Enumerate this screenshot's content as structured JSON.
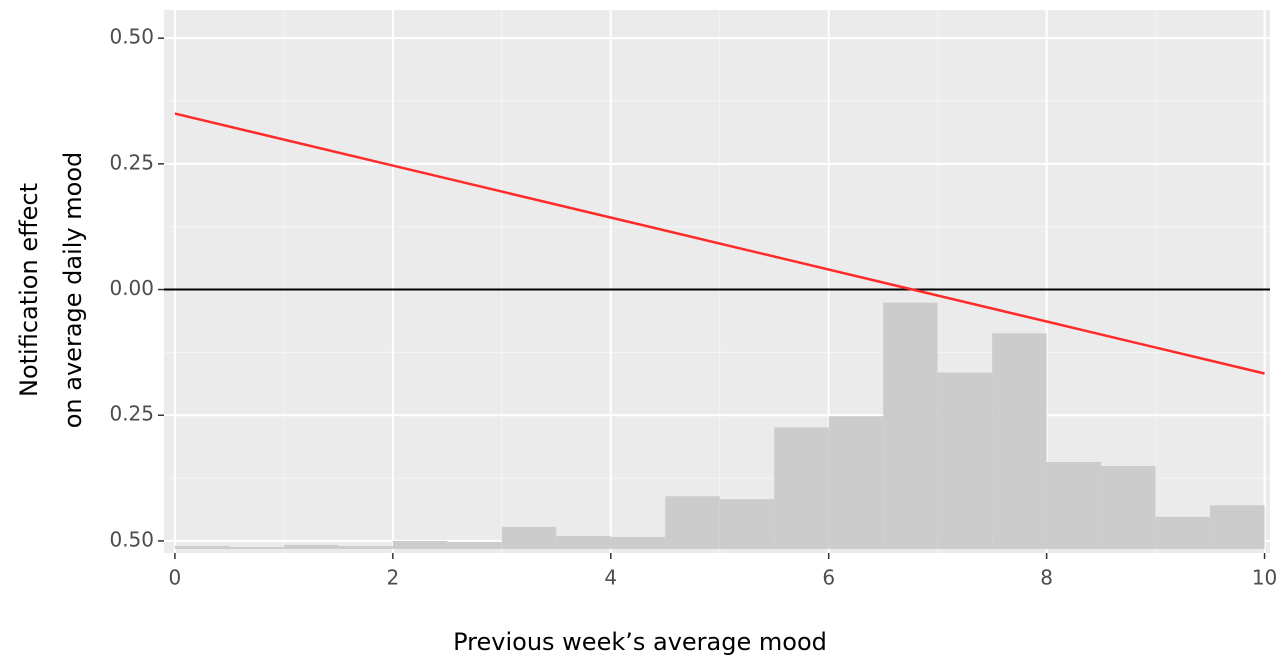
{
  "chart_data": {
    "type": "histogram",
    "x_label": "Previous  week’s average mood",
    "y_label": [
      "Notification effect",
      "on average daily mood"
    ],
    "bins": [
      0,
      0.5,
      1,
      1.5,
      2,
      2.5,
      3,
      3.5,
      4,
      4.5,
      5,
      5.5,
      6,
      6.5,
      7,
      7.5,
      8,
      8.5,
      9,
      9.5,
      10
    ],
    "values": [
      -0.51,
      -0.512,
      -0.508,
      -0.51,
      -0.5,
      -0.502,
      -0.472,
      -0.49,
      -0.492,
      -0.411,
      -0.417,
      -0.274,
      -0.252,
      -0.026,
      -0.165,
      -0.087,
      -0.343,
      -0.351,
      -0.452,
      -0.429
    ],
    "hist_base": -0.516,
    "color": "#cccccc",
    "lines": [
      {
        "x": [
          0,
          10
        ],
        "values": [
          0.35,
          -0.167
        ],
        "color": "#ff2a2a"
      }
    ],
    "hline": {
      "value": 0,
      "color": "#000000"
    },
    "xlim": [
      -0.1,
      10.05
    ],
    "ylim": [
      -0.524,
      0.556
    ],
    "xticks": [
      0,
      2,
      4,
      6,
      8,
      10
    ],
    "yticks": [
      {
        "value": -0.5,
        "label": "0.50"
      },
      {
        "value": -0.25,
        "label": "0.25"
      },
      {
        "value": 0,
        "label": "0.00"
      },
      {
        "value": 0.25,
        "label": "0.25"
      },
      {
        "value": 0.5,
        "label": "0.50"
      }
    ],
    "grid": true
  }
}
